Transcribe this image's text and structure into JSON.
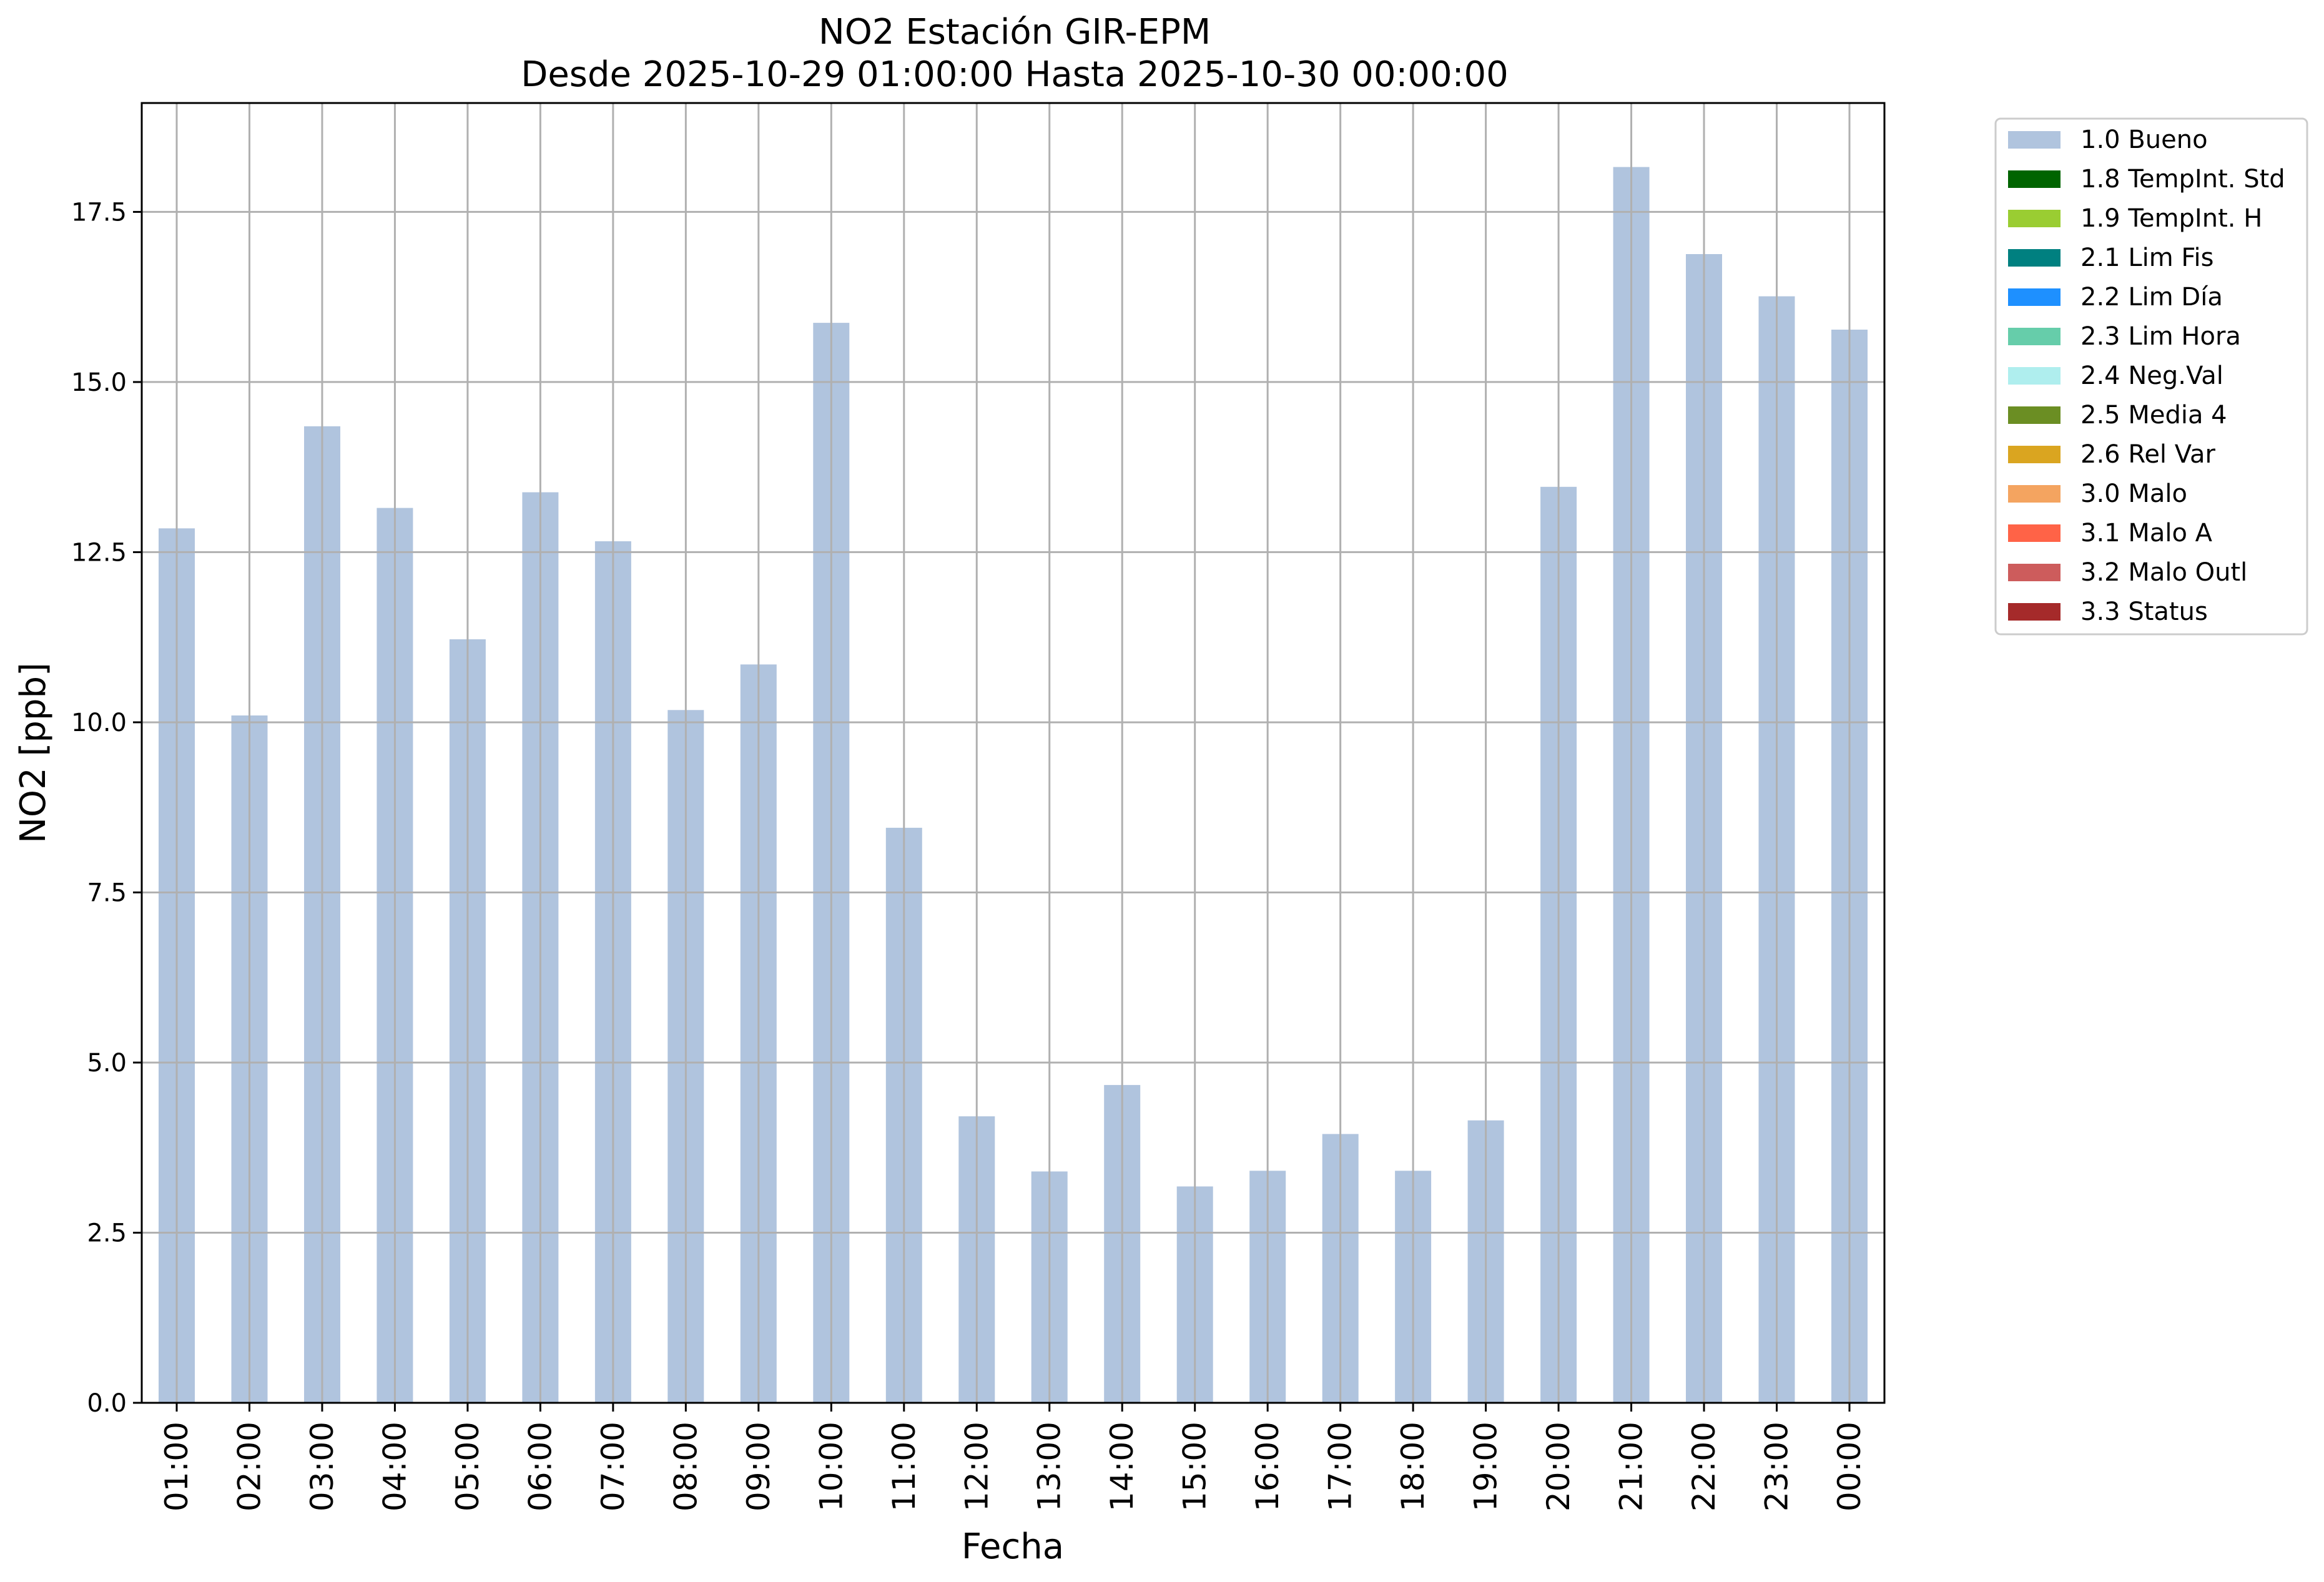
{
  "chart_data": {
    "type": "bar",
    "title": "NO2 Estación GIR-EPM",
    "subtitle": "Desde 2025-10-29 01:00:00 Hasta 2025-10-30 00:00:00",
    "xlabel": "Fecha",
    "ylabel": "NO2 [ppb]",
    "ylim": [
      0,
      19.1
    ],
    "yticks": [
      "0.0",
      "2.5",
      "5.0",
      "7.5",
      "10.0",
      "12.5",
      "15.0",
      "17.5"
    ],
    "grid": true,
    "legend_position": "outside-top-right",
    "categories": [
      "01:00",
      "02:00",
      "03:00",
      "04:00",
      "05:00",
      "06:00",
      "07:00",
      "08:00",
      "09:00",
      "10:00",
      "11:00",
      "12:00",
      "13:00",
      "14:00",
      "15:00",
      "16:00",
      "17:00",
      "18:00",
      "19:00",
      "20:00",
      "21:00",
      "22:00",
      "23:00",
      "00:00"
    ],
    "series": [
      {
        "name": "1.0 Bueno",
        "color": "#b0c4de",
        "values": [
          12.85,
          10.1,
          14.35,
          13.15,
          11.22,
          13.38,
          12.66,
          10.18,
          10.85,
          15.87,
          8.45,
          4.21,
          3.4,
          4.67,
          3.18,
          3.41,
          3.95,
          3.41,
          4.15,
          13.46,
          18.16,
          16.88,
          16.26,
          15.77
        ]
      }
    ],
    "legend": [
      {
        "label": "1.0 Bueno",
        "color": "#b0c4de"
      },
      {
        "label": "1.8 TempInt. Std",
        "color": "#006400"
      },
      {
        "label": "1.9 TempInt. H",
        "color": "#9acd32"
      },
      {
        "label": "2.1 Lim Fis",
        "color": "#008080"
      },
      {
        "label": "2.2 Lim Día",
        "color": "#1e90ff"
      },
      {
        "label": "2.3 Lim Hora",
        "color": "#66cdaa"
      },
      {
        "label": "2.4 Neg.Val",
        "color": "#afeeee"
      },
      {
        "label": "2.5 Media 4",
        "color": "#6b8e23"
      },
      {
        "label": "2.6 Rel Var",
        "color": "#daa520"
      },
      {
        "label": "3.0 Malo",
        "color": "#f4a460"
      },
      {
        "label": "3.1 Malo A",
        "color": "#ff6347"
      },
      {
        "label": "3.2 Malo Outl",
        "color": "#cd5c5c"
      },
      {
        "label": "3.3 Status",
        "color": "#a52a2a"
      }
    ]
  }
}
